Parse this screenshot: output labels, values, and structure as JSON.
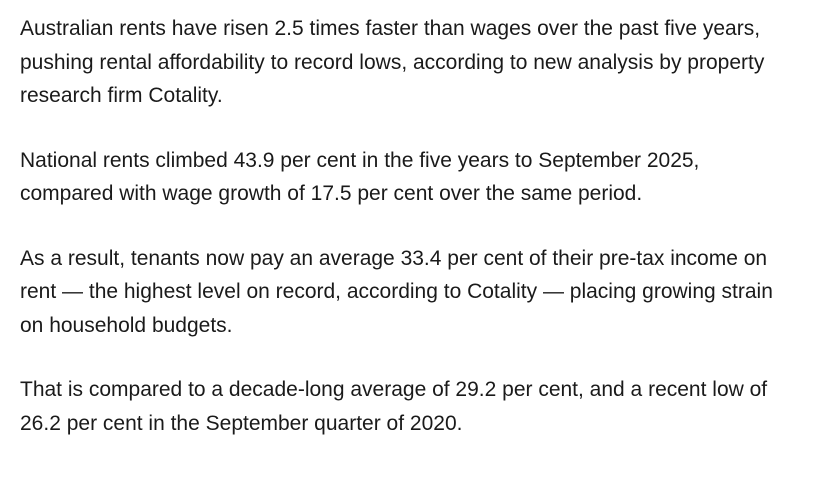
{
  "article": {
    "paragraphs": [
      "Australian rents have risen 2.5 times faster than wages over the past five years, pushing rental affordability to record lows, according to new analysis by property research firm Cotality.",
      "National rents climbed 43.9 per cent in the five years to September 2025, compared with wage growth of 17.5 per cent over the same period.",
      "As a result, tenants now pay an average 33.4 per cent of their pre-tax income on rent — the highest level on record, according to Cotality — placing growing strain on household budgets.",
      "That is compared to a decade-long average of 29.2 per cent, and a recent low of 26.2 per cent in the September quarter of 2020."
    ]
  }
}
